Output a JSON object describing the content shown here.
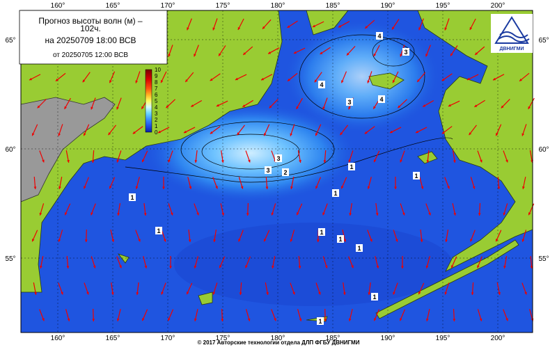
{
  "header": {
    "title": "Прогноз высоты волн (м) –",
    "subtitle": "102ч.",
    "forecast_line": "на 20250709 18:00 ВСВ",
    "issued_line": "от 20250705 12:00 ВСВ"
  },
  "logo": {
    "text": "ДВНИГМИ"
  },
  "map": {
    "longitude_labels": [
      "160°",
      "165°",
      "170°",
      "175°",
      "180°",
      "185°",
      "190°",
      "195°",
      "200°"
    ],
    "latitude_labels": [
      "65°",
      "60°",
      "55°"
    ],
    "contour_labels": [
      "4",
      "4",
      "3",
      "3",
      "4",
      "3",
      "3",
      "2",
      "1",
      "1",
      "1",
      "1",
      "1",
      "1",
      "1",
      "1",
      "1",
      "1"
    ]
  },
  "colorbar": {
    "labels": [
      "10",
      "9",
      "8",
      "7",
      "6",
      "5",
      "4",
      "3",
      "2",
      "1",
      "0"
    ]
  },
  "footer": "© 2017 Авторские технологии отдела ДЛП ФГБУ ДВНИГМИ"
}
